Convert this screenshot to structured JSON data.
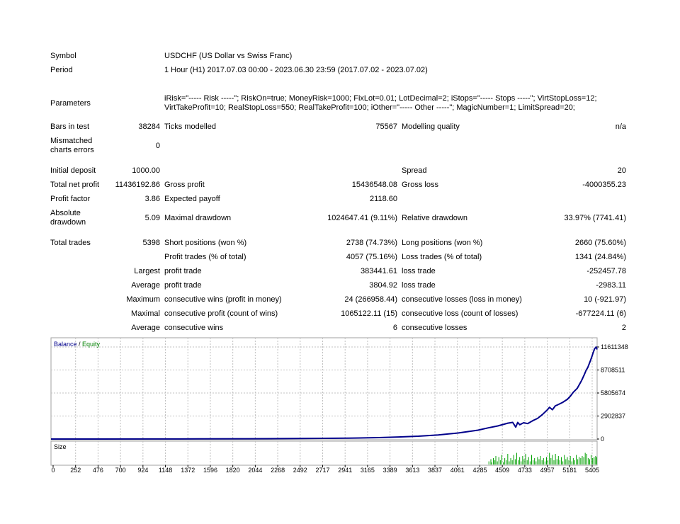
{
  "report": {
    "symbol_label": "Symbol",
    "symbol_value": "USDCHF (US Dollar vs Swiss Franc)",
    "period_label": "Period",
    "period_value": "1 Hour (H1) 2017.07.03 00:00 - 2023.06.30 23:59 (2017.07.02 - 2023.07.02)",
    "parameters_label": "Parameters",
    "parameters_line1": "iRisk=\"----- Risk -----\"; RiskOn=true; MoneyRisk=1000; FixLot=0.01; LotDecimal=2; iStops=\"----- Stops -----\"; VirtStopLoss=12;",
    "parameters_line2": "VirtTakeProfit=10; RealStopLoss=550; RealTakeProfit=100; iOther=\"----- Other -----\"; MagicNumber=1; LimitSpread=20;",
    "bars_label": "Bars in test",
    "bars_value": "38284",
    "ticks_label": "Ticks modelled",
    "ticks_value": "75567",
    "quality_label": "Modelling quality",
    "quality_value": "n/a",
    "mismatch_label_1": "Mismatched",
    "mismatch_label_2": "charts errors",
    "mismatch_value": "0",
    "deposit_label": "Initial deposit",
    "deposit_value": "1000.00",
    "spread_label": "Spread",
    "spread_value": "20",
    "netprofit_label": "Total net profit",
    "netprofit_value": "11436192.86",
    "grossprofit_label": "Gross profit",
    "grossprofit_value": "15436548.08",
    "grossloss_label": "Gross loss",
    "grossloss_value": "-4000355.23",
    "pf_label": "Profit factor",
    "pf_value": "3.86",
    "payoff_label": "Expected payoff",
    "payoff_value": "2118.60",
    "absdd_label_1": "Absolute",
    "absdd_label_2": "drawdown",
    "absdd_value": "5.09",
    "maxdd_label": "Maximal drawdown",
    "maxdd_value": "1024647.41 (9.11%)",
    "reldd_label": "Relative drawdown",
    "reldd_value": "33.97% (7741.41)",
    "trades_label": "Total trades",
    "trades_value": "5398",
    "short_label": "Short positions (won %)",
    "short_value": "2738 (74.73%)",
    "long_label": "Long positions (won %)",
    "long_value": "2660 (75.60%)",
    "profit_trades_label": "Profit trades (% of total)",
    "profit_trades_value": "4057 (75.16%)",
    "loss_trades_label": "Loss trades (% of total)",
    "loss_trades_value": "1341 (24.84%)",
    "largest_label": "Largest",
    "largest_profit_label": "profit trade",
    "largest_profit_value": "383441.61",
    "largest_loss_label": "loss trade",
    "largest_loss_value": "-252457.78",
    "average_label": "Average",
    "average_profit_label": "profit trade",
    "average_profit_value": "3804.92",
    "average_loss_label": "loss trade",
    "average_loss_value": "-2983.11",
    "maximum_label": "Maximum",
    "max_cons_wins_label": "consecutive wins (profit in money)",
    "max_cons_wins_value": "24 (266958.44)",
    "max_cons_losses_label": "consecutive losses (loss in money)",
    "max_cons_losses_value": "10 (-921.97)",
    "maximal_label": "Maximal",
    "maximal_cons_profit_label": "consecutive profit (count of wins)",
    "maximal_cons_profit_value": "1065122.11 (15)",
    "maximal_cons_loss_label": "consecutive loss (count of losses)",
    "maximal_cons_loss_value": "-677224.11 (6)",
    "avg_label": "Average",
    "avg_cons_wins_label": "consecutive wins",
    "avg_cons_wins_value": "6",
    "avg_cons_losses_label": "consecutive losses",
    "avg_cons_losses_value": "2"
  },
  "chart_data": {
    "type": "line",
    "legend": {
      "balance": "Balance",
      "separator": " / ",
      "equity": "Equity",
      "position": "top-left"
    },
    "colors": {
      "balance": "#00008b",
      "equity": "#008000",
      "grid": "#c0c0c0",
      "border": "#a0a0a0"
    },
    "xlim": [
      0,
      5500
    ],
    "ylim": [
      0,
      11611348
    ],
    "x_ticks": [
      "0",
      "252",
      "476",
      "700",
      "924",
      "1148",
      "1372",
      "1596",
      "1820",
      "2044",
      "2268",
      "2492",
      "2717",
      "2941",
      "3165",
      "3389",
      "3613",
      "3837",
      "4061",
      "4285",
      "4509",
      "4733",
      "4957",
      "5181",
      "5405"
    ],
    "y_ticks": [
      {
        "value": 0,
        "label": "0"
      },
      {
        "value": 2902837,
        "label": "2902837"
      },
      {
        "value": 5805674,
        "label": "5805674"
      },
      {
        "value": 8708511,
        "label": "8708511"
      },
      {
        "value": 11611348,
        "label": "11611348"
      }
    ],
    "grid": true,
    "series": [
      {
        "name": "Balance",
        "x": [
          0,
          500,
          1000,
          1500,
          2000,
          2500,
          3000,
          3300,
          3500,
          3700,
          3900,
          4100,
          4300,
          4400,
          4500,
          4600,
          4650,
          4680,
          4700,
          4720,
          4760,
          4800,
          4850,
          4900,
          4950,
          5000,
          5020,
          5050,
          5080,
          5100,
          5150,
          5200,
          5230,
          5260,
          5300,
          5340,
          5370,
          5390,
          5405,
          5430,
          5450,
          5460,
          5475,
          5490,
          5500
        ],
        "values": [
          1000,
          4000,
          9000,
          18000,
          35000,
          60000,
          110000,
          180000,
          260000,
          360000,
          520000,
          760000,
          1120000,
          1400000,
          1650000,
          2000000,
          2100000,
          1500000,
          2100000,
          1800000,
          2050000,
          1950000,
          2300000,
          2600000,
          3100000,
          3700000,
          4000000,
          3700000,
          4200000,
          4300000,
          4600000,
          5000000,
          5400000,
          5900000,
          6400000,
          7300000,
          8100000,
          8700000,
          9000000,
          9800000,
          10500000,
          10900000,
          11400000,
          11611348,
          11300000
        ]
      }
    ],
    "size_panel": {
      "label": "Size",
      "values": [
        [
          4410,
          0.15
        ],
        [
          4430,
          0.25
        ],
        [
          4440,
          0.1
        ],
        [
          4455,
          0.3
        ],
        [
          4470,
          0.2
        ],
        [
          4480,
          0.4
        ],
        [
          4495,
          0.15
        ],
        [
          4510,
          0.35
        ],
        [
          4525,
          0.2
        ],
        [
          4540,
          0.45
        ],
        [
          4555,
          0.1
        ],
        [
          4570,
          0.3
        ],
        [
          4585,
          0.2
        ],
        [
          4600,
          0.5
        ],
        [
          4615,
          0.15
        ],
        [
          4630,
          0.3
        ],
        [
          4645,
          0.2
        ],
        [
          4660,
          0.45
        ],
        [
          4675,
          0.25
        ],
        [
          4690,
          0.55
        ],
        [
          4705,
          0.2
        ],
        [
          4720,
          0.35
        ],
        [
          4735,
          0.15
        ],
        [
          4750,
          0.4
        ],
        [
          4765,
          0.25
        ],
        [
          4780,
          0.5
        ],
        [
          4795,
          0.2
        ],
        [
          4810,
          0.35
        ],
        [
          4825,
          0.15
        ],
        [
          4840,
          0.45
        ],
        [
          4855,
          0.2
        ],
        [
          4870,
          0.3
        ],
        [
          4885,
          0.15
        ],
        [
          4900,
          0.35
        ],
        [
          4915,
          0.25
        ],
        [
          4930,
          0.4
        ],
        [
          4945,
          0.2
        ],
        [
          4960,
          0.3
        ],
        [
          4975,
          0.15
        ],
        [
          4990,
          0.35
        ],
        [
          5005,
          0.2
        ],
        [
          5020,
          0.55
        ],
        [
          5035,
          0.3
        ],
        [
          5050,
          0.45
        ],
        [
          5065,
          0.2
        ],
        [
          5080,
          0.5
        ],
        [
          5095,
          0.25
        ],
        [
          5110,
          0.4
        ],
        [
          5125,
          0.2
        ],
        [
          5140,
          0.35
        ],
        [
          5155,
          0.15
        ],
        [
          5170,
          0.45
        ],
        [
          5185,
          0.25
        ],
        [
          5200,
          0.35
        ],
        [
          5215,
          0.2
        ],
        [
          5230,
          0.4
        ],
        [
          5245,
          0.15
        ],
        [
          5260,
          0.3
        ],
        [
          5275,
          0.2
        ],
        [
          5290,
          0.45
        ],
        [
          5305,
          0.25
        ],
        [
          5320,
          0.35
        ],
        [
          5335,
          0.3
        ],
        [
          5350,
          0.4
        ],
        [
          5365,
          0.35
        ],
        [
          5380,
          0.55
        ],
        [
          5395,
          0.5
        ],
        [
          5410,
          0.3
        ],
        [
          5425,
          0.25
        ],
        [
          5440,
          0.45
        ],
        [
          5455,
          0.3
        ],
        [
          5470,
          0.35
        ],
        [
          5485,
          0.4
        ],
        [
          5495,
          0.35
        ]
      ],
      "color": "#00a000"
    }
  }
}
